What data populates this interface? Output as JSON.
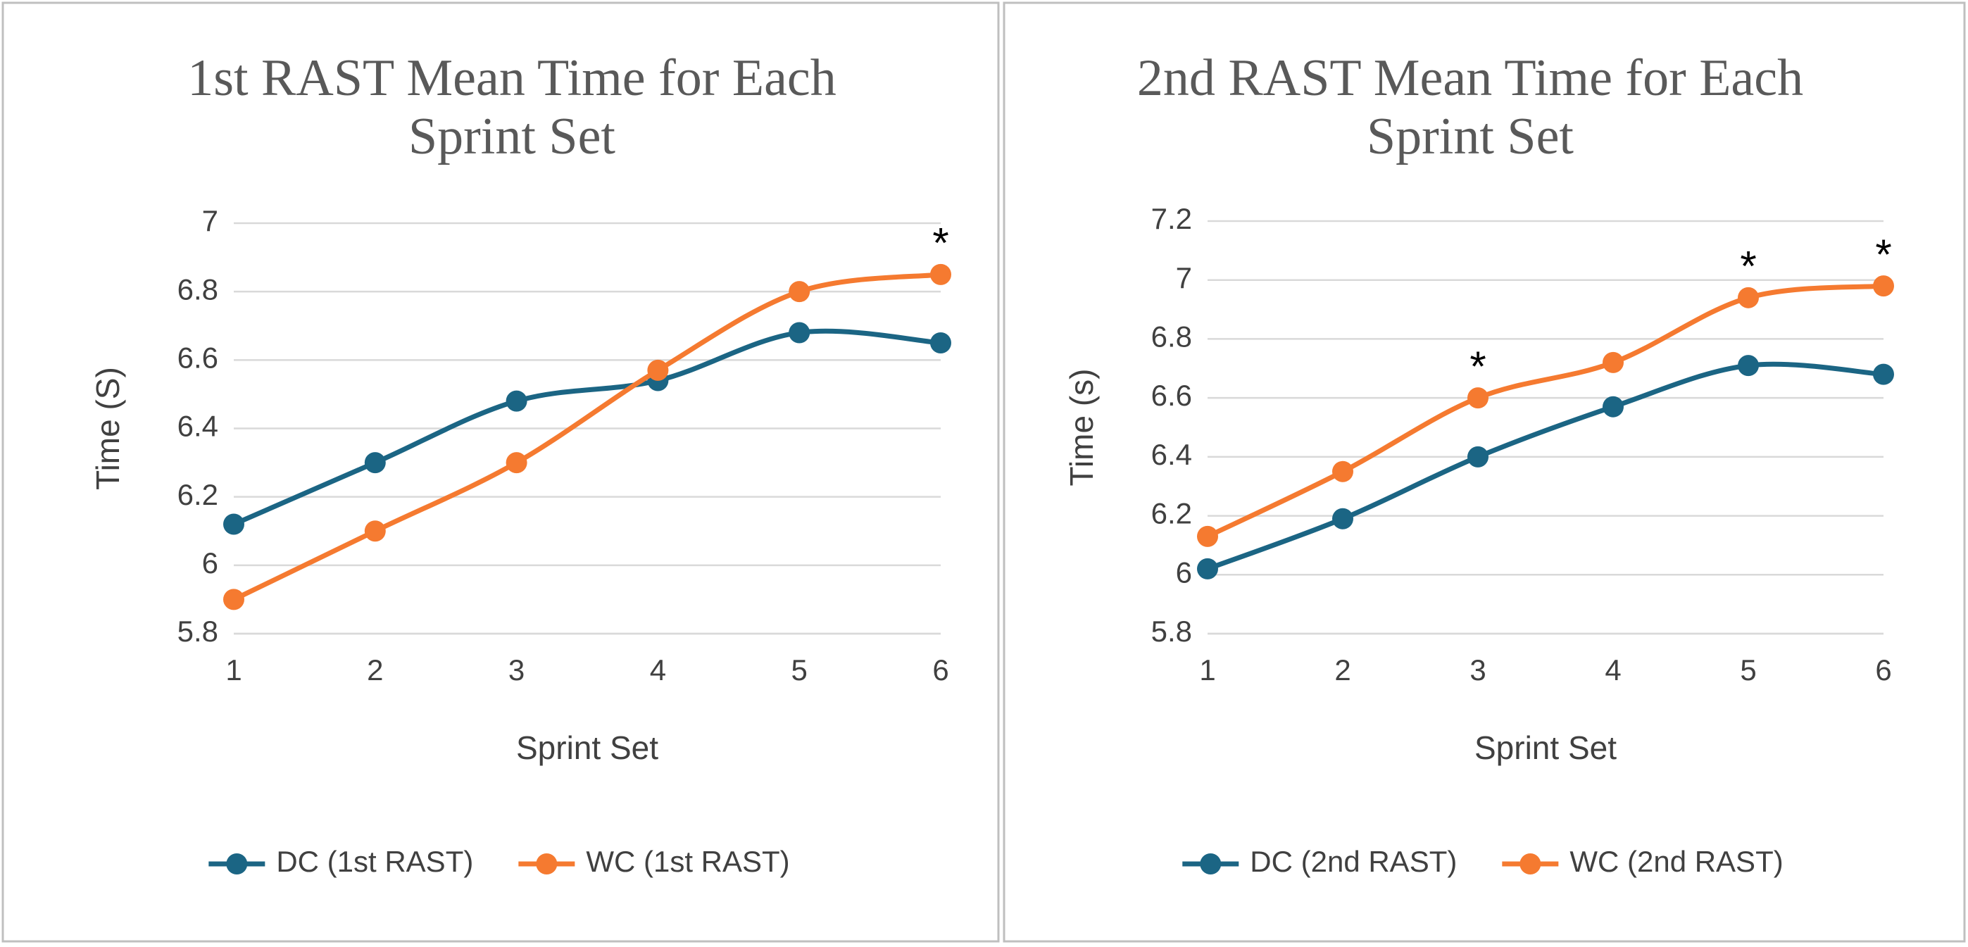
{
  "chart_data": [
    {
      "type": "line",
      "title": "1st RAST Mean Time for Each Sprint Set",
      "x_label": "Sprint Set",
      "y_label": "Time (S)",
      "x": [
        1,
        2,
        3,
        4,
        5,
        6
      ],
      "xlim": [
        1,
        6
      ],
      "xticks": [
        1,
        2,
        3,
        4,
        5,
        6
      ],
      "ylim": [
        5.8,
        7
      ],
      "yticks": [
        5.8,
        6,
        6.2,
        6.4,
        6.6,
        6.8,
        7
      ],
      "grid": true,
      "smooth": true,
      "legend": "bottom",
      "series": [
        {
          "name": "DC (1st RAST)",
          "color": "#1b6584",
          "values": [
            6.12,
            6.3,
            6.48,
            6.54,
            6.68,
            6.65
          ]
        },
        {
          "name": "WC (1st RAST)",
          "color": "#f57a30",
          "values": [
            5.9,
            6.1,
            6.3,
            6.57,
            6.8,
            6.85
          ]
        }
      ],
      "annotations": [
        {
          "text": "*",
          "x": 6,
          "y": 6.85
        }
      ]
    },
    {
      "type": "line",
      "title": "2nd RAST Mean Time for Each Sprint Set",
      "x_label": "Sprint Set",
      "y_label": "Time (s)",
      "x": [
        1,
        2,
        3,
        4,
        5,
        6
      ],
      "xlim": [
        1,
        6
      ],
      "xticks": [
        1,
        2,
        3,
        4,
        5,
        6
      ],
      "ylim": [
        5.8,
        7.2
      ],
      "yticks": [
        5.8,
        6,
        6.2,
        6.4,
        6.6,
        6.8,
        7,
        7.2
      ],
      "grid": true,
      "smooth": true,
      "legend": "bottom",
      "series": [
        {
          "name": "DC (2nd RAST)",
          "color": "#1b6584",
          "values": [
            6.02,
            6.19,
            6.4,
            6.57,
            6.71,
            6.68
          ]
        },
        {
          "name": "WC (2nd RAST)",
          "color": "#f57a30",
          "values": [
            6.13,
            6.35,
            6.6,
            6.72,
            6.94,
            6.98
          ]
        }
      ],
      "annotations": [
        {
          "text": "*",
          "x": 3,
          "y": 6.6
        },
        {
          "text": "*",
          "x": 5,
          "y": 6.94
        },
        {
          "text": "*",
          "x": 6,
          "y": 6.98
        }
      ]
    }
  ]
}
